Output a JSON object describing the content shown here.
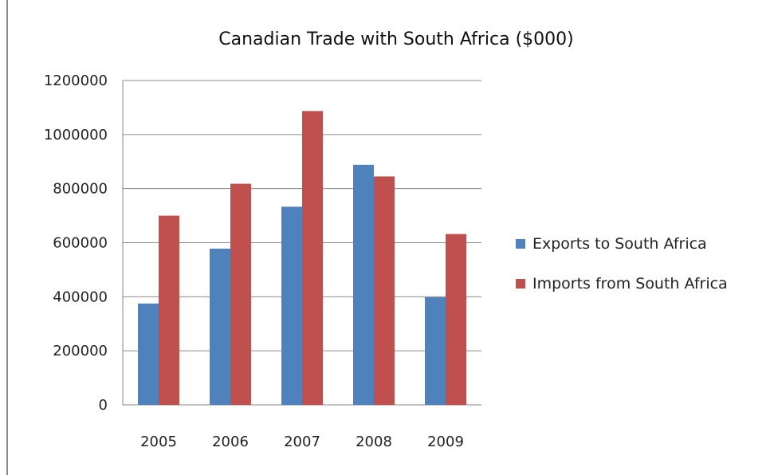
{
  "chart_data": {
    "type": "bar",
    "title": "Canadian Trade with South Africa ($000)",
    "xlabel": "",
    "ylabel": "",
    "categories": [
      "2005",
      "2006",
      "2007",
      "2008",
      "2009"
    ],
    "series": [
      {
        "name": "Exports to South Africa",
        "color": "#4f81bd",
        "values": [
          375000,
          578000,
          733000,
          888000,
          398000
        ]
      },
      {
        "name": "Imports from South Africa",
        "color": "#c0504d",
        "values": [
          700000,
          818000,
          1087000,
          845000,
          632000
        ]
      }
    ],
    "ylim": [
      0,
      1200000
    ],
    "yticks": [
      "0",
      "200000",
      "400000",
      "600000",
      "800000",
      "1000000",
      "1200000"
    ],
    "grid": true,
    "legend_position": "right"
  }
}
